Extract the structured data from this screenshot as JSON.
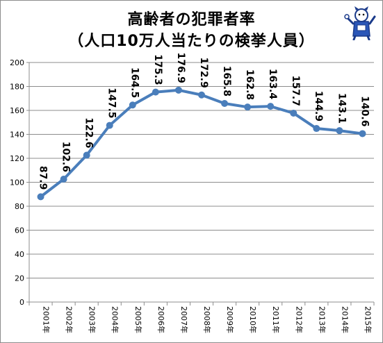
{
  "title_line1": "高齢者の犯罪者率",
  "title_line2": "（人口10万人当たりの検挙人員）",
  "colors": {
    "series": "#4a7ebb",
    "grid": "#8c8c8c",
    "text": "#000000"
  },
  "chart_data": {
    "type": "line",
    "title": "高齢者の犯罪者率（人口10万人当たりの検挙人員）",
    "xlabel": "",
    "ylabel": "",
    "ylim": [
      0,
      200
    ],
    "yticks": [
      0,
      20,
      40,
      60,
      80,
      100,
      120,
      140,
      160,
      180,
      200
    ],
    "grid": true,
    "categories": [
      "2001年",
      "2002年",
      "2003年",
      "2004年",
      "2005年",
      "2006年",
      "2007年",
      "2008年",
      "2009年",
      "2010年",
      "2011年",
      "2012年",
      "2013年",
      "2014年",
      "2015年"
    ],
    "series": [
      {
        "values": [
          87.9,
          102.6,
          122.6,
          147.5,
          164.5,
          175.3,
          176.9,
          172.9,
          165.8,
          162.8,
          163.4,
          157.7,
          144.9,
          143.1,
          140.6
        ],
        "labels": [
          "87.9",
          "102.6",
          "122.6",
          "147.5",
          "164.5",
          "175.3",
          "176.9",
          "172.9",
          "165.8",
          "162.8",
          "163.4",
          "157.7",
          "144.9",
          "143.1",
          "140.6"
        ]
      }
    ]
  }
}
